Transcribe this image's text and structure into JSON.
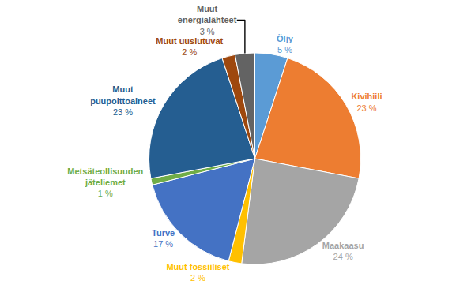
{
  "chart_data": {
    "type": "pie",
    "categories": [
      "Öljy",
      "Kivihiili",
      "Maakaasu",
      "Muut fossiiliset",
      "Turve",
      "Metsäteollisuuden jäteliemet",
      "Muut puupolttoaineet",
      "Muut uusiutuvat",
      "Muut energialähteet"
    ],
    "values": [
      5,
      23,
      24,
      2,
      17,
      1,
      23,
      2,
      3
    ],
    "value_labels": [
      "5 %",
      "23 %",
      "24 %",
      "2 %",
      "17 %",
      "1 %",
      "23 %",
      "2 %",
      "3 %"
    ],
    "colors": [
      "#5b9bd5",
      "#ed7d31",
      "#a5a5a5",
      "#ffc000",
      "#4472c4",
      "#70ad47",
      "#255e91",
      "#9e480e",
      "#636363"
    ],
    "data_labels": true
  }
}
